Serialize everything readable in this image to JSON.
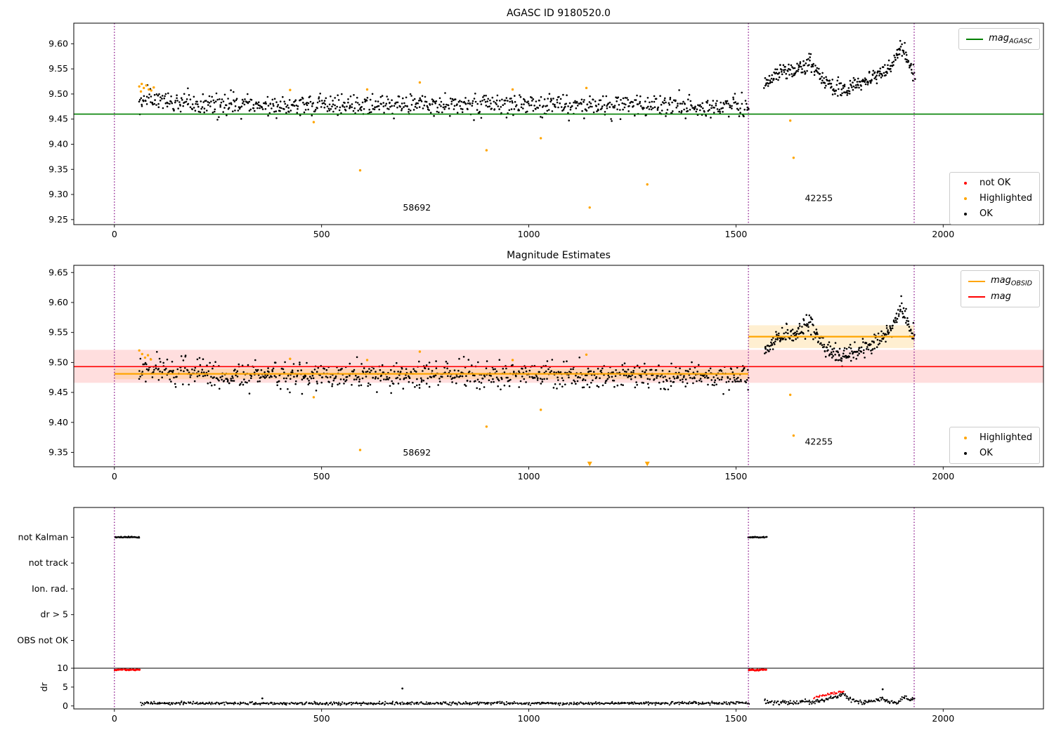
{
  "chart_data": [
    {
      "id": "agasc",
      "type": "scatter",
      "title": "AGASC ID 9180520.0",
      "xlim": [
        -98,
        2242
      ],
      "ylim": [
        9.24,
        9.641
      ],
      "xticks": [
        0,
        500,
        1000,
        1500,
        2000
      ],
      "yticks": [
        9.25,
        9.3,
        9.35,
        9.4,
        9.45,
        9.5,
        9.55,
        9.6
      ],
      "ytick_decimals": 2,
      "bands": [],
      "hlines": [
        {
          "y": 9.46,
          "x0": -98,
          "x1": 2242,
          "color": "#008000",
          "width": 1.6
        }
      ],
      "vlines": [
        {
          "x": 0
        },
        {
          "x": 1530
        },
        {
          "x": 1930
        }
      ],
      "vline_color": "#800080",
      "clusters": [
        {
          "name": "ok-main",
          "color": "#000000",
          "x_range": [
            58,
            1532
          ],
          "n": 880,
          "noise": 0.011,
          "r": 1.3,
          "anchors": [
            [
              58,
              9.487
            ],
            [
              90,
              9.49
            ],
            [
              140,
              9.481
            ],
            [
              300,
              9.479
            ],
            [
              600,
              9.478
            ],
            [
              900,
              9.479
            ],
            [
              1200,
              9.477
            ],
            [
              1532,
              9.477
            ]
          ]
        },
        {
          "name": "ok-late",
          "color": "#000000",
          "x_range": [
            1568,
            1932
          ],
          "n": 300,
          "noise": 0.008,
          "r": 1.3,
          "anchors": [
            [
              1568,
              9.517
            ],
            [
              1590,
              9.534
            ],
            [
              1614,
              9.551
            ],
            [
              1638,
              9.544
            ],
            [
              1660,
              9.555
            ],
            [
              1680,
              9.566
            ],
            [
              1696,
              9.546
            ],
            [
              1712,
              9.527
            ],
            [
              1734,
              9.514
            ],
            [
              1756,
              9.509
            ],
            [
              1778,
              9.513
            ],
            [
              1802,
              9.52
            ],
            [
              1826,
              9.53
            ],
            [
              1850,
              9.544
            ],
            [
              1872,
              9.552
            ],
            [
              1888,
              9.576
            ],
            [
              1898,
              9.594
            ],
            [
              1910,
              9.575
            ],
            [
              1922,
              9.553
            ],
            [
              1932,
              9.541
            ]
          ]
        }
      ],
      "points": [
        {
          "x": 60,
          "y": 9.515,
          "color": "#ffa500"
        },
        {
          "x": 66,
          "y": 9.52,
          "color": "#ffa500"
        },
        {
          "x": 71,
          "y": 9.512,
          "color": "#ffa500"
        },
        {
          "x": 77,
          "y": 9.517,
          "color": "#ffa500"
        },
        {
          "x": 83,
          "y": 9.509,
          "color": "#ffa500"
        },
        {
          "x": 89,
          "y": 9.507,
          "color": "#ffa500"
        },
        {
          "x": 95,
          "y": 9.513,
          "color": "#ffa500"
        },
        {
          "x": 64,
          "y": 9.505,
          "color": "#ffa500"
        },
        {
          "x": 424,
          "y": 9.508,
          "color": "#ffa500"
        },
        {
          "x": 481,
          "y": 9.444,
          "color": "#ffa500"
        },
        {
          "x": 593,
          "y": 9.348,
          "color": "#ffa500"
        },
        {
          "x": 610,
          "y": 9.509,
          "color": "#ffa500"
        },
        {
          "x": 737,
          "y": 9.523,
          "color": "#ffa500"
        },
        {
          "x": 898,
          "y": 9.388,
          "color": "#ffa500"
        },
        {
          "x": 961,
          "y": 9.509,
          "color": "#ffa500"
        },
        {
          "x": 1029,
          "y": 9.412,
          "color": "#ffa500"
        },
        {
          "x": 1139,
          "y": 9.512,
          "color": "#ffa500"
        },
        {
          "x": 1147,
          "y": 9.274,
          "color": "#ffa500"
        },
        {
          "x": 1286,
          "y": 9.32,
          "color": "#ffa500"
        },
        {
          "x": 1631,
          "y": 9.447,
          "color": "#ffa500"
        },
        {
          "x": 1639,
          "y": 9.373,
          "color": "#ffa500"
        }
      ],
      "annotations": [
        {
          "x": 730,
          "y": 9.268,
          "text": "58692"
        },
        {
          "x": 1700,
          "y": 9.287,
          "text": "42255"
        }
      ],
      "legends": [
        {
          "slot": "top-right",
          "entries": [
            {
              "marker": "line",
              "color": "#008000",
              "label": {
                "text": "mag",
                "sub": "AGASC",
                "math": true
              }
            }
          ]
        },
        {
          "slot": "bottom-right",
          "entries": [
            {
              "marker": "dot",
              "color": "#ff0000",
              "label": {
                "text": "not OK"
              }
            },
            {
              "marker": "dot",
              "color": "#ffa500",
              "label": {
                "text": "Highlighted"
              }
            },
            {
              "marker": "dot",
              "color": "#000000",
              "label": {
                "text": "OK"
              }
            }
          ]
        }
      ]
    },
    {
      "id": "magest",
      "type": "scatter",
      "title": "Magnitude Estimates",
      "xlim": [
        -98,
        2242
      ],
      "ylim": [
        9.326,
        9.662
      ],
      "xticks": [
        0,
        500,
        1000,
        1500,
        2000
      ],
      "yticks": [
        9.35,
        9.4,
        9.45,
        9.5,
        9.55,
        9.6,
        9.65
      ],
      "ytick_decimals": 2,
      "bands": [
        {
          "x0": -98,
          "x1": 2242,
          "y0": 9.466,
          "y1": 9.521,
          "color": "rgba(255,0,0,0.13)"
        },
        {
          "x0": 0,
          "x1": 1530,
          "y0": 9.472,
          "y1": 9.49,
          "color": "rgba(255,165,0,0.18)"
        },
        {
          "x0": 1530,
          "x1": 1930,
          "y0": 9.524,
          "y1": 9.562,
          "color": "rgba(255,165,0,0.18)"
        }
      ],
      "hlines": [
        {
          "y": 9.481,
          "x0": 0,
          "x1": 1530,
          "color": "#ffa500",
          "width": 2.2
        },
        {
          "y": 9.543,
          "x0": 1530,
          "x1": 1930,
          "color": "#ffa500",
          "width": 2.2
        },
        {
          "y": 9.493,
          "x0": -98,
          "x1": 2242,
          "color": "#ff0000",
          "width": 1.6
        }
      ],
      "vlines": [
        {
          "x": 0
        },
        {
          "x": 1530
        },
        {
          "x": 1930
        }
      ],
      "vline_color": "#800080",
      "clusters": [
        {
          "name": "ok-main",
          "color": "#000000",
          "x_range": [
            58,
            1532
          ],
          "n": 880,
          "noise": 0.011,
          "r": 1.3,
          "anchors": [
            [
              58,
              9.487
            ],
            [
              90,
              9.49
            ],
            [
              140,
              9.481
            ],
            [
              300,
              9.479
            ],
            [
              600,
              9.478
            ],
            [
              900,
              9.479
            ],
            [
              1200,
              9.477
            ],
            [
              1532,
              9.477
            ]
          ]
        },
        {
          "name": "ok-late",
          "color": "#000000",
          "x_range": [
            1568,
            1932
          ],
          "n": 300,
          "noise": 0.008,
          "r": 1.3,
          "anchors": [
            [
              1568,
              9.517
            ],
            [
              1590,
              9.534
            ],
            [
              1614,
              9.551
            ],
            [
              1638,
              9.544
            ],
            [
              1660,
              9.555
            ],
            [
              1680,
              9.566
            ],
            [
              1696,
              9.546
            ],
            [
              1712,
              9.527
            ],
            [
              1734,
              9.514
            ],
            [
              1756,
              9.509
            ],
            [
              1778,
              9.513
            ],
            [
              1802,
              9.52
            ],
            [
              1826,
              9.53
            ],
            [
              1850,
              9.544
            ],
            [
              1872,
              9.552
            ],
            [
              1888,
              9.576
            ],
            [
              1898,
              9.594
            ],
            [
              1910,
              9.575
            ],
            [
              1922,
              9.553
            ],
            [
              1932,
              9.541
            ]
          ]
        }
      ],
      "points": [
        {
          "x": 60,
          "y": 9.52,
          "color": "#ffa500"
        },
        {
          "x": 67,
          "y": 9.514,
          "color": "#ffa500"
        },
        {
          "x": 74,
          "y": 9.508,
          "color": "#ffa500"
        },
        {
          "x": 81,
          "y": 9.512,
          "color": "#ffa500"
        },
        {
          "x": 88,
          "y": 9.505,
          "color": "#ffa500"
        },
        {
          "x": 424,
          "y": 9.506,
          "color": "#ffa500"
        },
        {
          "x": 481,
          "y": 9.442,
          "color": "#ffa500"
        },
        {
          "x": 593,
          "y": 9.354,
          "color": "#ffa500"
        },
        {
          "x": 610,
          "y": 9.504,
          "color": "#ffa500"
        },
        {
          "x": 737,
          "y": 9.518,
          "color": "#ffa500"
        },
        {
          "x": 898,
          "y": 9.393,
          "color": "#ffa500"
        },
        {
          "x": 961,
          "y": 9.504,
          "color": "#ffa500"
        },
        {
          "x": 1029,
          "y": 9.421,
          "color": "#ffa500"
        },
        {
          "x": 1139,
          "y": 9.513,
          "color": "#ffa500"
        },
        {
          "x": 1631,
          "y": 9.446,
          "color": "#ffa500"
        },
        {
          "x": 1639,
          "y": 9.378,
          "color": "#ffa500"
        },
        {
          "x": 1147,
          "y": 9.331,
          "color": "#ffa500",
          "marker": "tri"
        },
        {
          "x": 1286,
          "y": 9.331,
          "color": "#ffa500",
          "marker": "tri"
        }
      ],
      "annotations": [
        {
          "x": 730,
          "y": 9.345,
          "text": "58692"
        },
        {
          "x": 1700,
          "y": 9.363,
          "text": "42255"
        }
      ],
      "legends": [
        {
          "slot": "top-right",
          "entries": [
            {
              "marker": "line",
              "color": "#ffa500",
              "label": {
                "text": "mag",
                "sub": "OBSID",
                "math": true
              }
            },
            {
              "marker": "line",
              "color": "#ff0000",
              "label": {
                "text": "mag",
                "math": true
              }
            }
          ]
        },
        {
          "slot": "bottom-right",
          "entries": [
            {
              "marker": "dot",
              "color": "#ffa500",
              "label": {
                "text": "Highlighted"
              }
            },
            {
              "marker": "dot",
              "color": "#000000",
              "label": {
                "text": "OK"
              }
            }
          ]
        }
      ]
    },
    {
      "id": "flags",
      "type": "scatter",
      "title": "",
      "xlim": [
        -98,
        2242
      ],
      "ylim": [
        -1.5,
        100
      ],
      "xticks": [
        0,
        500,
        1000,
        1500,
        2000
      ],
      "yticks_custom": [
        {
          "v": 85,
          "label": "not Kalman"
        },
        {
          "v": 72,
          "label": "not track"
        },
        {
          "v": 59,
          "label": "Ion. rad."
        },
        {
          "v": 46,
          "label": "dr > 5"
        },
        {
          "v": 33,
          "label": "OBS not OK"
        },
        {
          "v": 19,
          "label": "10"
        },
        {
          "v": 9.5,
          "label": "5"
        },
        {
          "v": 0,
          "label": "0"
        }
      ],
      "ylabel": {
        "text": "dr",
        "v": 9.5
      },
      "bands": [],
      "hlines": [
        {
          "y": 19,
          "x0": -98,
          "x1": 2242,
          "color": "#000000",
          "width": 1
        }
      ],
      "vlines": [
        {
          "x": 0
        },
        {
          "x": 1530
        },
        {
          "x": 1930
        }
      ],
      "vline_color": "#800080",
      "clusters": [
        {
          "name": "not-kalman-1",
          "color": "#000000",
          "x_range": [
            0,
            62
          ],
          "n": 32,
          "noise": 0.15,
          "r": 1.3,
          "anchors": [
            [
              0,
              85
            ],
            [
              62,
              85
            ]
          ]
        },
        {
          "name": "not-kalman-2",
          "color": "#000000",
          "x_range": [
            1530,
            1574
          ],
          "n": 24,
          "noise": 0.15,
          "r": 1.3,
          "anchors": [
            [
              1530,
              85
            ],
            [
              1574,
              85
            ]
          ]
        },
        {
          "name": "dr-clip-1",
          "color": "#ff0000",
          "x_range": [
            0,
            62
          ],
          "n": 28,
          "noise": 0.18,
          "r": 1.5,
          "anchors": [
            [
              0,
              18.2
            ],
            [
              62,
              18.2
            ]
          ]
        },
        {
          "name": "dr-clip-2",
          "color": "#ff0000",
          "x_range": [
            1530,
            1574
          ],
          "n": 22,
          "noise": 0.18,
          "r": 1.5,
          "anchors": [
            [
              1530,
              18.2
            ],
            [
              1574,
              18.2
            ]
          ]
        },
        {
          "name": "dr-main",
          "color": "#000000",
          "x_range": [
            62,
            1532
          ],
          "n": 720,
          "noise": 0.35,
          "r": 1.1,
          "ymin": 0.3,
          "anchors": [
            [
              62,
              1.3
            ],
            [
              120,
              1.4
            ],
            [
              300,
              1.3
            ],
            [
              500,
              1.2
            ],
            [
              700,
              1.3
            ],
            [
              900,
              1.4
            ],
            [
              1100,
              1.3
            ],
            [
              1300,
              1.35
            ],
            [
              1532,
              1.4
            ]
          ]
        },
        {
          "name": "dr-late",
          "color": "#000000",
          "x_range": [
            1568,
            1932
          ],
          "n": 210,
          "noise": 0.5,
          "r": 1.1,
          "ymin": 0.3,
          "anchors": [
            [
              1568,
              2.4
            ],
            [
              1590,
              1.6
            ],
            [
              1610,
              2.1
            ],
            [
              1640,
              1.5
            ],
            [
              1665,
              2.3
            ],
            [
              1685,
              1.9
            ],
            [
              1705,
              2.7
            ],
            [
              1725,
              3.8
            ],
            [
              1745,
              5.0
            ],
            [
              1762,
              6.1
            ],
            [
              1772,
              3.8
            ],
            [
              1790,
              2.3
            ],
            [
              1812,
              1.9
            ],
            [
              1832,
              2.5
            ],
            [
              1852,
              3.4
            ],
            [
              1872,
              2.1
            ],
            [
              1890,
              1.7
            ],
            [
              1906,
              4.4
            ],
            [
              1920,
              3.0
            ],
            [
              1932,
              4.0
            ]
          ]
        },
        {
          "name": "dr-red-rise",
          "color": "#ff0000",
          "x_range": [
            1688,
            1762
          ],
          "n": 40,
          "noise": 0.3,
          "r": 1.1,
          "anchors": [
            [
              1688,
              4.2
            ],
            [
              1710,
              5.3
            ],
            [
              1735,
              6.3
            ],
            [
              1762,
              7.4
            ]
          ]
        }
      ],
      "points": [
        {
          "x": 695,
          "y": 8.8,
          "color": "#000000",
          "r": 1.4
        },
        {
          "x": 357,
          "y": 3.8,
          "color": "#000000",
          "r": 1.4
        },
        {
          "x": 1854,
          "y": 8.4,
          "color": "#000000",
          "r": 1.4
        }
      ],
      "annotations": [],
      "legends": []
    }
  ]
}
